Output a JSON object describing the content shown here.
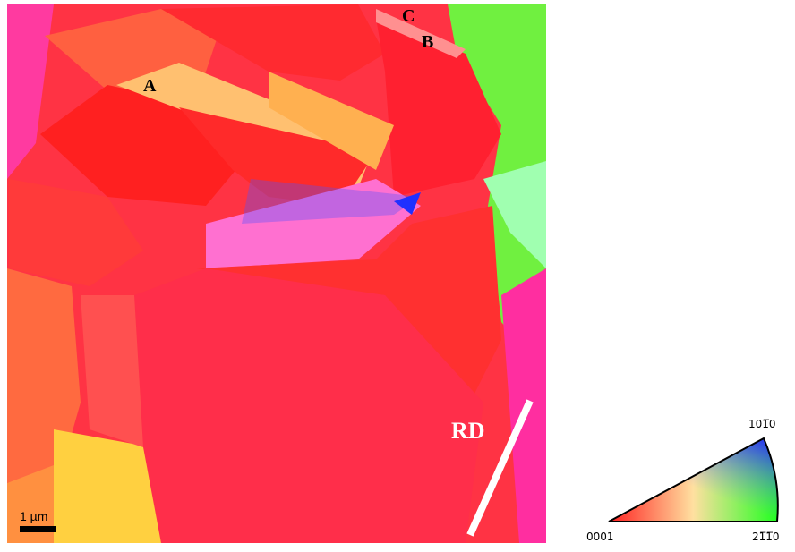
{
  "labels": {
    "a": "A",
    "b": "B",
    "c": "C",
    "rd": "RD",
    "scale": "1 µm"
  },
  "legend": {
    "origin": "0001",
    "right": "21̅1̅0",
    "top": "101̅0"
  }
}
